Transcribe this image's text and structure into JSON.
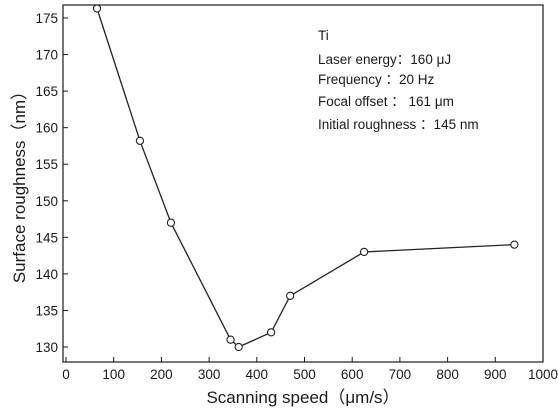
{
  "chart_data": {
    "type": "line",
    "xlabel": "Scanning speed（μm/s）",
    "ylabel": "Surface roughness（nm）",
    "xlim": [
      0,
      1000
    ],
    "ylim": [
      128,
      177
    ],
    "x_ticks": [
      0,
      100,
      200,
      300,
      400,
      500,
      600,
      700,
      800,
      900,
      1000
    ],
    "y_ticks": [
      130,
      135,
      140,
      145,
      150,
      155,
      160,
      165,
      170,
      175
    ],
    "grid": false,
    "series": [
      {
        "x": [
          65,
          155,
          220,
          345,
          362,
          430,
          470,
          625,
          940
        ],
        "y": [
          176.3,
          158.2,
          147.0,
          131.0,
          130.0,
          132.0,
          137.0,
          143.0,
          144.0
        ],
        "marker": "circle",
        "color": "#222222"
      }
    ],
    "annotations": {
      "material": "Ti",
      "lines": [
        "Laser energy：160 μJ",
        "Frequency ：20 Hz",
        "Focal offset ： 161 μm",
        "Initial roughness ：145 nm"
      ]
    }
  }
}
